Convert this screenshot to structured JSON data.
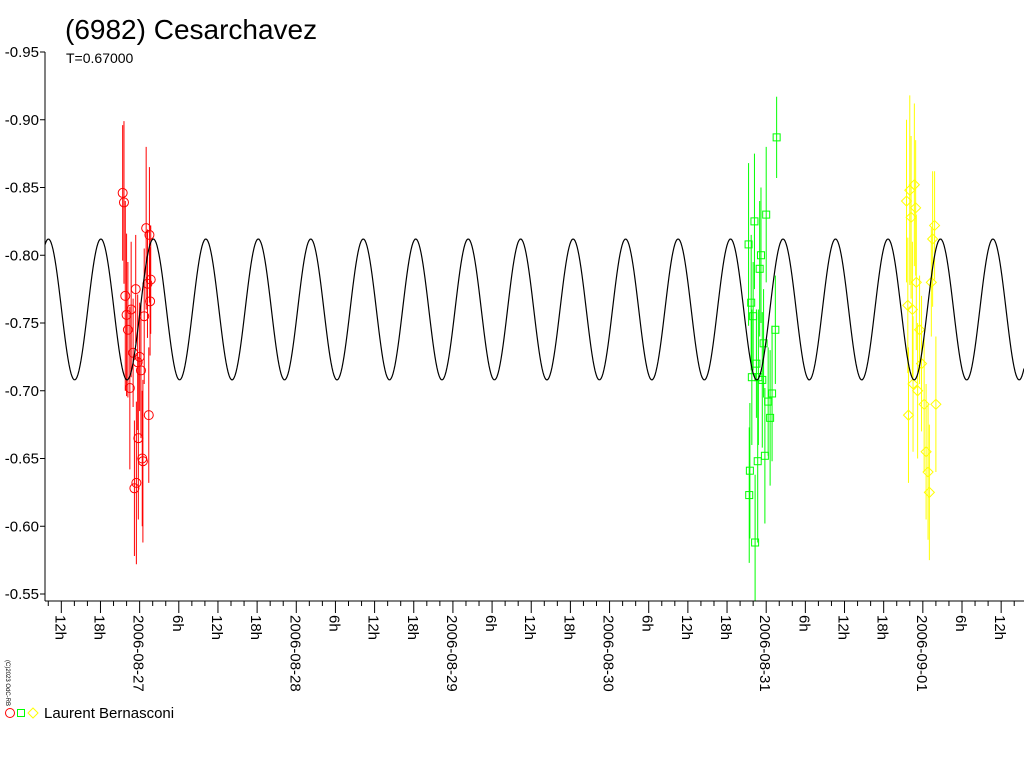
{
  "chart_data": {
    "type": "scatter",
    "title": "(6982) Cesarchavez",
    "subtitle": "T=0.67000",
    "credit": "(C)2023 OdC-RB",
    "xlabel": "",
    "ylabel": "",
    "ylim": [
      -0.95,
      -0.55
    ],
    "y_inverted": true,
    "y_ticks": [
      -0.95,
      -0.9,
      -0.85,
      -0.8,
      -0.75,
      -0.7,
      -0.65,
      -0.6,
      -0.55
    ],
    "y_tick_labels": [
      "-0.95",
      "-0.90",
      "-0.85",
      "-0.80",
      "-0.75",
      "-0.70",
      "-0.65",
      "-0.60",
      "-0.55"
    ],
    "x_range_hours": [
      -14.5,
      135.5
    ],
    "x_ticks": [
      {
        "h": -12,
        "label": "12h"
      },
      {
        "h": -6,
        "label": "18h"
      },
      {
        "h": 0,
        "label": "2006-08-27"
      },
      {
        "h": 6,
        "label": "6h"
      },
      {
        "h": 12,
        "label": "12h"
      },
      {
        "h": 18,
        "label": "18h"
      },
      {
        "h": 24,
        "label": "2006-08-28"
      },
      {
        "h": 30,
        "label": "6h"
      },
      {
        "h": 36,
        "label": "12h"
      },
      {
        "h": 42,
        "label": "18h"
      },
      {
        "h": 48,
        "label": "2006-08-29"
      },
      {
        "h": 54,
        "label": "6h"
      },
      {
        "h": 60,
        "label": "12h"
      },
      {
        "h": 66,
        "label": "18h"
      },
      {
        "h": 72,
        "label": "2006-08-30"
      },
      {
        "h": 78,
        "label": "6h"
      },
      {
        "h": 84,
        "label": "12h"
      },
      {
        "h": 90,
        "label": "18h"
      },
      {
        "h": 96,
        "label": "2006-08-31"
      },
      {
        "h": 102,
        "label": "6h"
      },
      {
        "h": 108,
        "label": "12h"
      },
      {
        "h": 114,
        "label": "18h"
      },
      {
        "h": 120,
        "label": "2006-09-01"
      },
      {
        "h": 126,
        "label": "6h"
      },
      {
        "h": 132,
        "label": "12h"
      }
    ],
    "model_curve": {
      "period_hours": 8.04,
      "mean": -0.76,
      "amplitude": 0.052,
      "phase_peak_hours": 2.1,
      "color": "#000000"
    },
    "legend_observer": "Laurent Bernasconi",
    "series": [
      {
        "marker": "circle",
        "color": "#ff0000",
        "points": [
          [
            -2.6,
            -0.846,
            0.05
          ],
          [
            -2.4,
            -0.839,
            0.06
          ],
          [
            -2.2,
            -0.77,
            0.07
          ],
          [
            -2.0,
            -0.756,
            0.06
          ],
          [
            -1.8,
            -0.745,
            0.05
          ],
          [
            -1.5,
            -0.702,
            0.06
          ],
          [
            -1.3,
            -0.76,
            0.05
          ],
          [
            -1.0,
            -0.728,
            0.04
          ],
          [
            -0.8,
            -0.628,
            0.05
          ],
          [
            -0.6,
            -0.775,
            0.04
          ],
          [
            -0.5,
            -0.632,
            0.06
          ],
          [
            -0.3,
            -0.721,
            0.05
          ],
          [
            -0.2,
            -0.665,
            0.06
          ],
          [
            0.0,
            -0.725,
            0.04
          ],
          [
            0.2,
            -0.715,
            0.05
          ],
          [
            0.4,
            -0.65,
            0.05
          ],
          [
            0.5,
            -0.648,
            0.06
          ],
          [
            0.7,
            -0.755,
            0.05
          ],
          [
            1.0,
            -0.82,
            0.06
          ],
          [
            1.2,
            -0.779,
            0.04
          ],
          [
            1.4,
            -0.682,
            0.05
          ],
          [
            1.5,
            -0.815,
            0.05
          ],
          [
            1.6,
            -0.766,
            0.04
          ],
          [
            1.7,
            -0.782,
            0.04
          ]
        ]
      },
      {
        "marker": "square",
        "color": "#00ff00",
        "points": [
          [
            93.3,
            -0.808,
            0.06
          ],
          [
            93.4,
            -0.623,
            0.05
          ],
          [
            93.5,
            -0.641,
            0.05
          ],
          [
            93.7,
            -0.765,
            0.05
          ],
          [
            93.8,
            -0.71,
            0.05
          ],
          [
            94.0,
            -0.755,
            0.04
          ],
          [
            94.2,
            -0.825,
            0.05
          ],
          [
            94.3,
            -0.588,
            0.05
          ],
          [
            94.5,
            -0.72,
            0.04
          ],
          [
            94.7,
            -0.648,
            0.06
          ],
          [
            94.8,
            -0.71,
            0.05
          ],
          [
            95.0,
            -0.79,
            0.05
          ],
          [
            95.2,
            -0.8,
            0.05
          ],
          [
            95.4,
            -0.708,
            0.05
          ],
          [
            95.6,
            -0.735,
            0.04
          ],
          [
            95.8,
            -0.652,
            0.05
          ],
          [
            96.0,
            -0.83,
            0.05
          ],
          [
            96.3,
            -0.692,
            0.04
          ],
          [
            96.6,
            -0.68,
            0.05
          ],
          [
            96.9,
            -0.698,
            0.05
          ],
          [
            97.4,
            -0.745,
            0.04
          ],
          [
            97.6,
            -0.887,
            0.03
          ]
        ]
      },
      {
        "marker": "diamond",
        "color": "#ffff00",
        "points": [
          [
            117.5,
            -0.84,
            0.06
          ],
          [
            117.7,
            -0.763,
            0.05
          ],
          [
            117.8,
            -0.682,
            0.05
          ],
          [
            118.0,
            -0.848,
            0.07
          ],
          [
            118.2,
            -0.828,
            0.06
          ],
          [
            118.4,
            -0.76,
            0.05
          ],
          [
            118.5,
            -0.705,
            0.05
          ],
          [
            118.7,
            -0.852,
            0.06
          ],
          [
            118.9,
            -0.835,
            0.05
          ],
          [
            119.0,
            -0.78,
            0.05
          ],
          [
            119.2,
            -0.7,
            0.05
          ],
          [
            119.5,
            -0.745,
            0.04
          ],
          [
            119.8,
            -0.72,
            0.05
          ],
          [
            120.2,
            -0.69,
            0.05
          ],
          [
            120.5,
            -0.655,
            0.05
          ],
          [
            120.8,
            -0.64,
            0.05
          ],
          [
            121.0,
            -0.625,
            0.05
          ],
          [
            121.3,
            -0.78,
            0.04
          ],
          [
            121.5,
            -0.812,
            0.05
          ],
          [
            121.8,
            -0.822,
            0.04
          ],
          [
            122.0,
            -0.69,
            0.05
          ]
        ]
      }
    ]
  }
}
